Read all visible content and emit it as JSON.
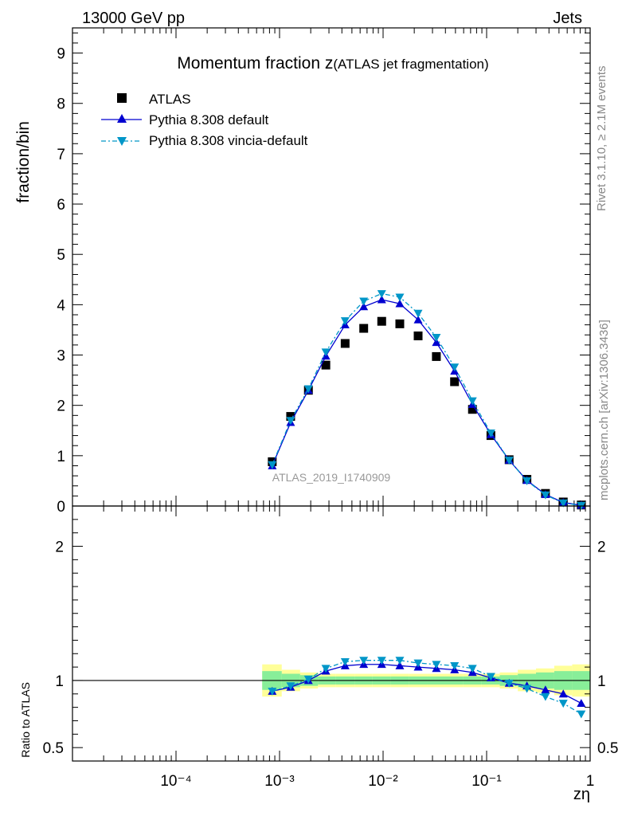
{
  "header": {
    "energy_label": "13000 GeV pp",
    "category_label": "Jets"
  },
  "side_labels": {
    "rivet": "Rivet 3.1.10, ≥ 2.1M events",
    "mcplots": "mcplots.cern.ch [arXiv:1306.3436]"
  },
  "colors": {
    "atlas": "#000000",
    "pythia_default": "#0000d0",
    "pythia_vincia": "#0096c8",
    "band_inner": "#88ee99",
    "band_outer": "#ffff99",
    "watermark": "#999999"
  },
  "chart_data": [
    {
      "panel": "main",
      "type": "scatter",
      "title": "Momentum fraction z",
      "subtitle": "(ATLAS jet fragmentation)",
      "ylabel": "fraction/bin",
      "xlabel": "zη",
      "xscale": "log",
      "xlim": [
        1e-05,
        1
      ],
      "ylim": [
        0,
        9.5
      ],
      "yticks": [
        0,
        1,
        2,
        3,
        4,
        5,
        6,
        7,
        8,
        9
      ],
      "watermark": "ATLAS_2019_I1740909",
      "legend": [
        "ATLAS",
        "Pythia 8.308 default",
        "Pythia 8.308 vincia-default"
      ],
      "x": [
        0.00085,
        0.00128,
        0.0019,
        0.0028,
        0.0043,
        0.0065,
        0.0097,
        0.0145,
        0.0218,
        0.0327,
        0.049,
        0.073,
        0.11,
        0.165,
        0.245,
        0.37,
        0.55,
        0.82
      ],
      "series": [
        {
          "name": "ATLAS",
          "style": "square",
          "values": [
            0.88,
            1.78,
            2.3,
            2.8,
            3.23,
            3.53,
            3.67,
            3.62,
            3.38,
            2.97,
            2.47,
            1.92,
            1.4,
            0.92,
            0.53,
            0.25,
            0.08,
            0.02
          ]
        },
        {
          "name": "Pythia 8.308 default",
          "style": "triangle-up",
          "values": [
            0.8,
            1.66,
            2.3,
            2.98,
            3.6,
            3.96,
            4.1,
            4.02,
            3.7,
            3.25,
            2.68,
            2.02,
            1.42,
            0.91,
            0.51,
            0.23,
            0.07,
            0.015
          ]
        },
        {
          "name": "Pythia 8.308 vincia-default",
          "style": "triangle-down",
          "values": [
            0.82,
            1.7,
            2.33,
            3.06,
            3.68,
            4.07,
            4.22,
            4.15,
            3.83,
            3.35,
            2.76,
            2.09,
            1.45,
            0.91,
            0.5,
            0.22,
            0.06,
            0.012
          ]
        }
      ]
    },
    {
      "panel": "ratio",
      "type": "line",
      "ylabel": "Ratio to ATLAS",
      "xlabel": "zη",
      "xscale": "log",
      "xlim": [
        1e-05,
        1
      ],
      "ylim": [
        0.4,
        2.3
      ],
      "yticks": [
        0.5,
        1,
        2
      ],
      "ytick_labels": [
        "0.5",
        "1",
        "2"
      ],
      "xtick_labels": [
        "10⁻⁴",
        "10⁻³",
        "10⁻²",
        "10⁻¹",
        "1"
      ],
      "x": [
        0.00085,
        0.00128,
        0.0019,
        0.0028,
        0.0043,
        0.0065,
        0.0097,
        0.0145,
        0.0218,
        0.0327,
        0.049,
        0.073,
        0.11,
        0.165,
        0.245,
        0.37,
        0.55,
        0.82
      ],
      "bin_edges": [
        0.00068,
        0.00105,
        0.00158,
        0.00235,
        0.0035,
        0.0053,
        0.0079,
        0.0118,
        0.0177,
        0.0265,
        0.0398,
        0.0597,
        0.0895,
        0.134,
        0.2,
        0.3,
        0.45,
        0.67,
        1.0
      ],
      "band_inner": [
        0.07,
        0.05,
        0.04,
        0.03,
        0.03,
        0.03,
        0.03,
        0.03,
        0.03,
        0.03,
        0.03,
        0.03,
        0.03,
        0.04,
        0.05,
        0.06,
        0.07,
        0.07
      ],
      "band_outer": [
        0.12,
        0.08,
        0.06,
        0.05,
        0.05,
        0.05,
        0.05,
        0.05,
        0.05,
        0.05,
        0.05,
        0.05,
        0.05,
        0.06,
        0.08,
        0.09,
        0.11,
        0.12
      ],
      "series": [
        {
          "name": "Pythia 8.308 default",
          "style": "triangle-up",
          "values": [
            0.92,
            0.95,
            1.0,
            1.07,
            1.11,
            1.12,
            1.12,
            1.11,
            1.1,
            1.09,
            1.08,
            1.06,
            1.02,
            0.98,
            0.96,
            0.93,
            0.9,
            0.83
          ]
        },
        {
          "name": "Pythia 8.308 vincia-default",
          "style": "triangle-down",
          "values": [
            0.92,
            0.96,
            1.01,
            1.09,
            1.14,
            1.15,
            1.15,
            1.15,
            1.13,
            1.12,
            1.11,
            1.09,
            1.03,
            0.98,
            0.94,
            0.88,
            0.83,
            0.75
          ]
        }
      ]
    }
  ]
}
